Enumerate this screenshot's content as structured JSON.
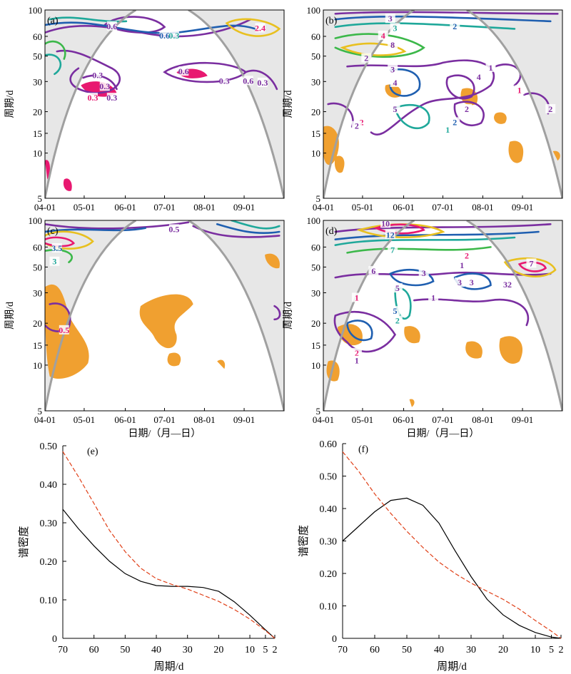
{
  "figure": {
    "wavelet_panels": [
      {
        "label": "(a)",
        "contour_labels": [
          "0.6",
          "0.6",
          "0.3",
          "2.4",
          "0.3",
          "0.3",
          "0.6",
          "0.3",
          "0.3",
          "0.6",
          "0.3",
          "0.3"
        ]
      },
      {
        "label": "(b)",
        "contour_labels": [
          "3",
          "2",
          "3",
          "4",
          "8",
          "2",
          "3",
          "4",
          "4",
          "5",
          "1",
          "1",
          "2",
          "2",
          "1",
          "2",
          "2",
          "2"
        ]
      },
      {
        "label": "(c)",
        "contour_labels": [
          "0.5",
          "3.5",
          "3",
          "0.5"
        ]
      },
      {
        "label": "(d)",
        "contour_labels": [
          "10",
          "12",
          "7",
          "2",
          "1",
          "6",
          "3",
          "3",
          "3",
          "32",
          "5",
          "1",
          "1",
          "5",
          "2",
          "2",
          "1",
          "7"
        ]
      }
    ],
    "wavelet_y_ticks": [
      "100",
      "60",
      "50",
      "30",
      "20",
      "15",
      "10",
      "5"
    ],
    "wavelet_x_ticks": [
      "04-01",
      "05-01",
      "06-01",
      "07-01",
      "08-01",
      "09-01"
    ],
    "wavelet_ylabel": "周期/d",
    "wavelet_xlabel": "日期/（月—日）",
    "colors": {
      "coi": "#a0a0a0",
      "significance": "#f0a030",
      "contour_low": "#7a2ea0",
      "contour_mid": "#1f5fb0",
      "contour_teal": "#1fa89a",
      "contour_green": "#3cb84a",
      "contour_yellow": "#e8c020",
      "contour_high": "#e81870",
      "spectrum_solid": "#000000",
      "spectrum_dashed": "#e04018"
    }
  },
  "chart_data": [
    {
      "type": "line",
      "label": "(e)",
      "xlabel": "周期/d",
      "ylabel": "谱密度",
      "x_ticks": [
        "70",
        "60",
        "50",
        "40",
        "30",
        "20",
        "10",
        "5",
        "2"
      ],
      "y_ticks": [
        "0.50",
        "0.40",
        "0.30",
        "0.20",
        "0.10",
        "0"
      ],
      "xlim": [
        70,
        2
      ],
      "ylim": [
        0,
        0.5
      ],
      "series": [
        {
          "style": "solid",
          "x": [
            70,
            65,
            60,
            55,
            50,
            45,
            40,
            35,
            30,
            25,
            20,
            15,
            10,
            5,
            2
          ],
          "y": [
            0.335,
            0.285,
            0.24,
            0.2,
            0.168,
            0.148,
            0.137,
            0.135,
            0.135,
            0.132,
            0.122,
            0.095,
            0.06,
            0.022,
            0.0
          ]
        },
        {
          "style": "dashed",
          "x": [
            70,
            65,
            60,
            55,
            50,
            45,
            40,
            35,
            30,
            25,
            20,
            15,
            10,
            5,
            2
          ],
          "y": [
            0.485,
            0.42,
            0.35,
            0.28,
            0.225,
            0.182,
            0.155,
            0.14,
            0.128,
            0.112,
            0.096,
            0.075,
            0.05,
            0.02,
            0.0
          ]
        }
      ]
    },
    {
      "type": "line",
      "label": "(f)",
      "xlabel": "周期/d",
      "ylabel": "谱密度",
      "x_ticks": [
        "70",
        "60",
        "50",
        "40",
        "30",
        "20",
        "10",
        "5",
        "2"
      ],
      "y_ticks": [
        "0.60",
        "0.50",
        "0.40",
        "0.30",
        "0.20",
        "0.10",
        "0"
      ],
      "xlim": [
        70,
        2
      ],
      "ylim": [
        0,
        0.6
      ],
      "series": [
        {
          "style": "solid",
          "x": [
            70,
            65,
            60,
            55,
            50,
            45,
            40,
            35,
            30,
            25,
            20,
            15,
            10,
            5,
            2
          ],
          "y": [
            0.3,
            0.345,
            0.39,
            0.425,
            0.432,
            0.41,
            0.355,
            0.27,
            0.19,
            0.12,
            0.072,
            0.04,
            0.018,
            0.004,
            0.0
          ]
        },
        {
          "style": "dashed",
          "x": [
            70,
            65,
            60,
            55,
            50,
            45,
            40,
            35,
            30,
            25,
            20,
            15,
            10,
            5,
            2
          ],
          "y": [
            0.575,
            0.515,
            0.445,
            0.385,
            0.33,
            0.28,
            0.235,
            0.2,
            0.17,
            0.145,
            0.12,
            0.09,
            0.055,
            0.022,
            0.0
          ]
        }
      ]
    }
  ]
}
